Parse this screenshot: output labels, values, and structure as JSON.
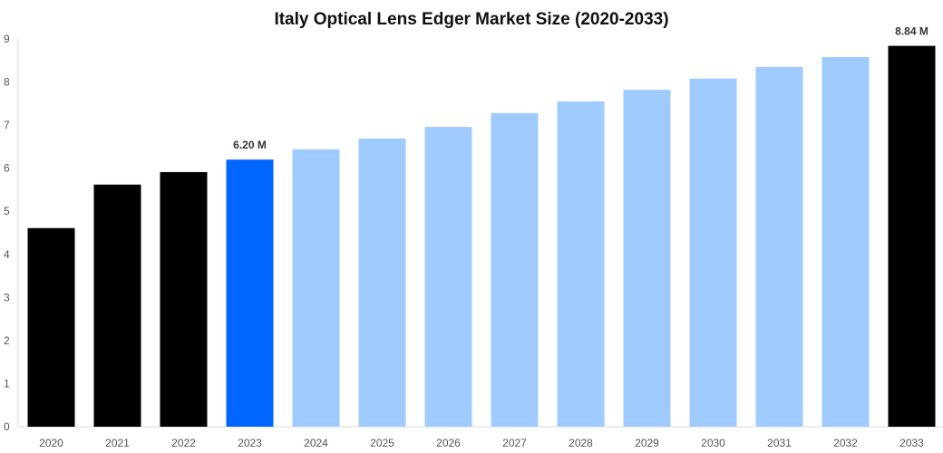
{
  "chart_data": {
    "type": "bar",
    "title": "Italy Optical Lens Edger Market Size (2020-2033)",
    "xlabel": "",
    "ylabel": "",
    "ylim": [
      0,
      9
    ],
    "yticks": [
      "0",
      "1",
      "2",
      "3",
      "4",
      "5",
      "6",
      "7",
      "8",
      "9"
    ],
    "grid": false,
    "categories": [
      "2020",
      "2021",
      "2022",
      "2023",
      "2024",
      "2025",
      "2026",
      "2027",
      "2028",
      "2029",
      "2030",
      "2031",
      "2032",
      "2033"
    ],
    "values": [
      4.61,
      5.62,
      5.91,
      6.2,
      6.44,
      6.69,
      6.96,
      7.28,
      7.55,
      7.82,
      8.08,
      8.35,
      8.58,
      8.84
    ],
    "bar_colors": [
      "#000000",
      "#000000",
      "#000000",
      "#0066ff",
      "#a0cbff",
      "#a0cbff",
      "#a0cbff",
      "#a0cbff",
      "#a0cbff",
      "#a0cbff",
      "#a0cbff",
      "#a0cbff",
      "#a0cbff",
      "#000000"
    ],
    "data_labels": [
      {
        "category": "2023",
        "text": "6.20 M"
      },
      {
        "category": "2033",
        "text": "8.84 M"
      }
    ]
  }
}
